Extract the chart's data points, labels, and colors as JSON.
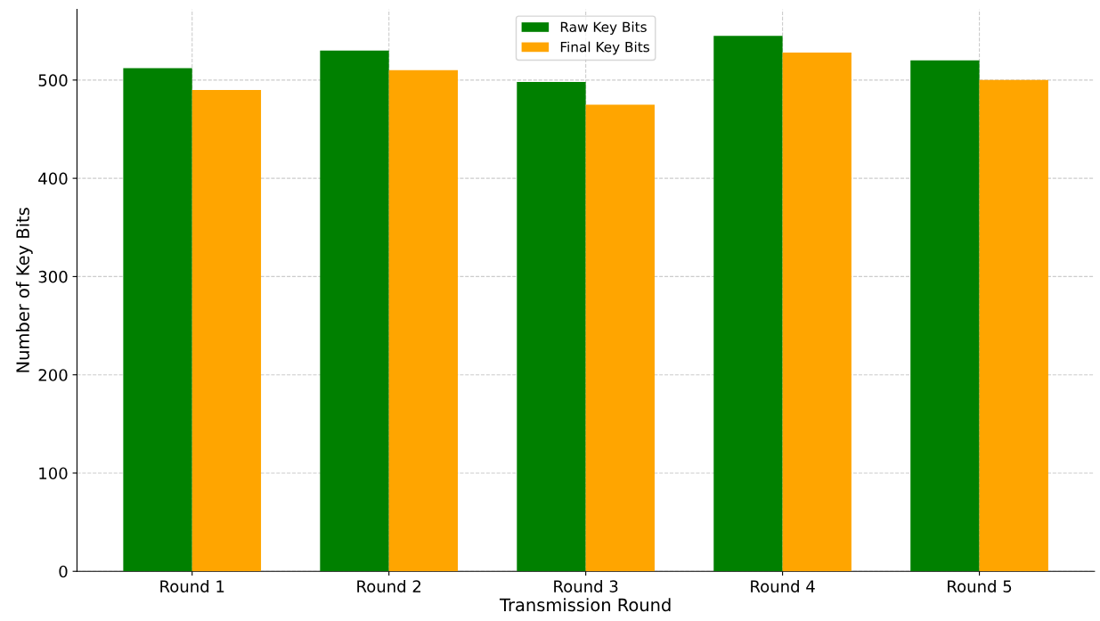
{
  "chart_data": {
    "type": "bar",
    "xlabel": "Transmission Round",
    "ylabel": "Number of Key Bits",
    "categories": [
      "Round 1",
      "Round 2",
      "Round 3",
      "Round 4",
      "Round 5"
    ],
    "series": [
      {
        "name": "Raw Key Bits",
        "color": "#008000",
        "values": [
          512,
          530,
          498,
          545,
          520
        ]
      },
      {
        "name": "Final Key Bits",
        "color": "#ffa500",
        "values": [
          490,
          510,
          475,
          528,
          500
        ]
      }
    ],
    "ylim": [
      0,
      572
    ],
    "yticks": [
      0,
      100,
      200,
      300,
      400,
      500
    ],
    "grid": true,
    "legend": "top"
  }
}
